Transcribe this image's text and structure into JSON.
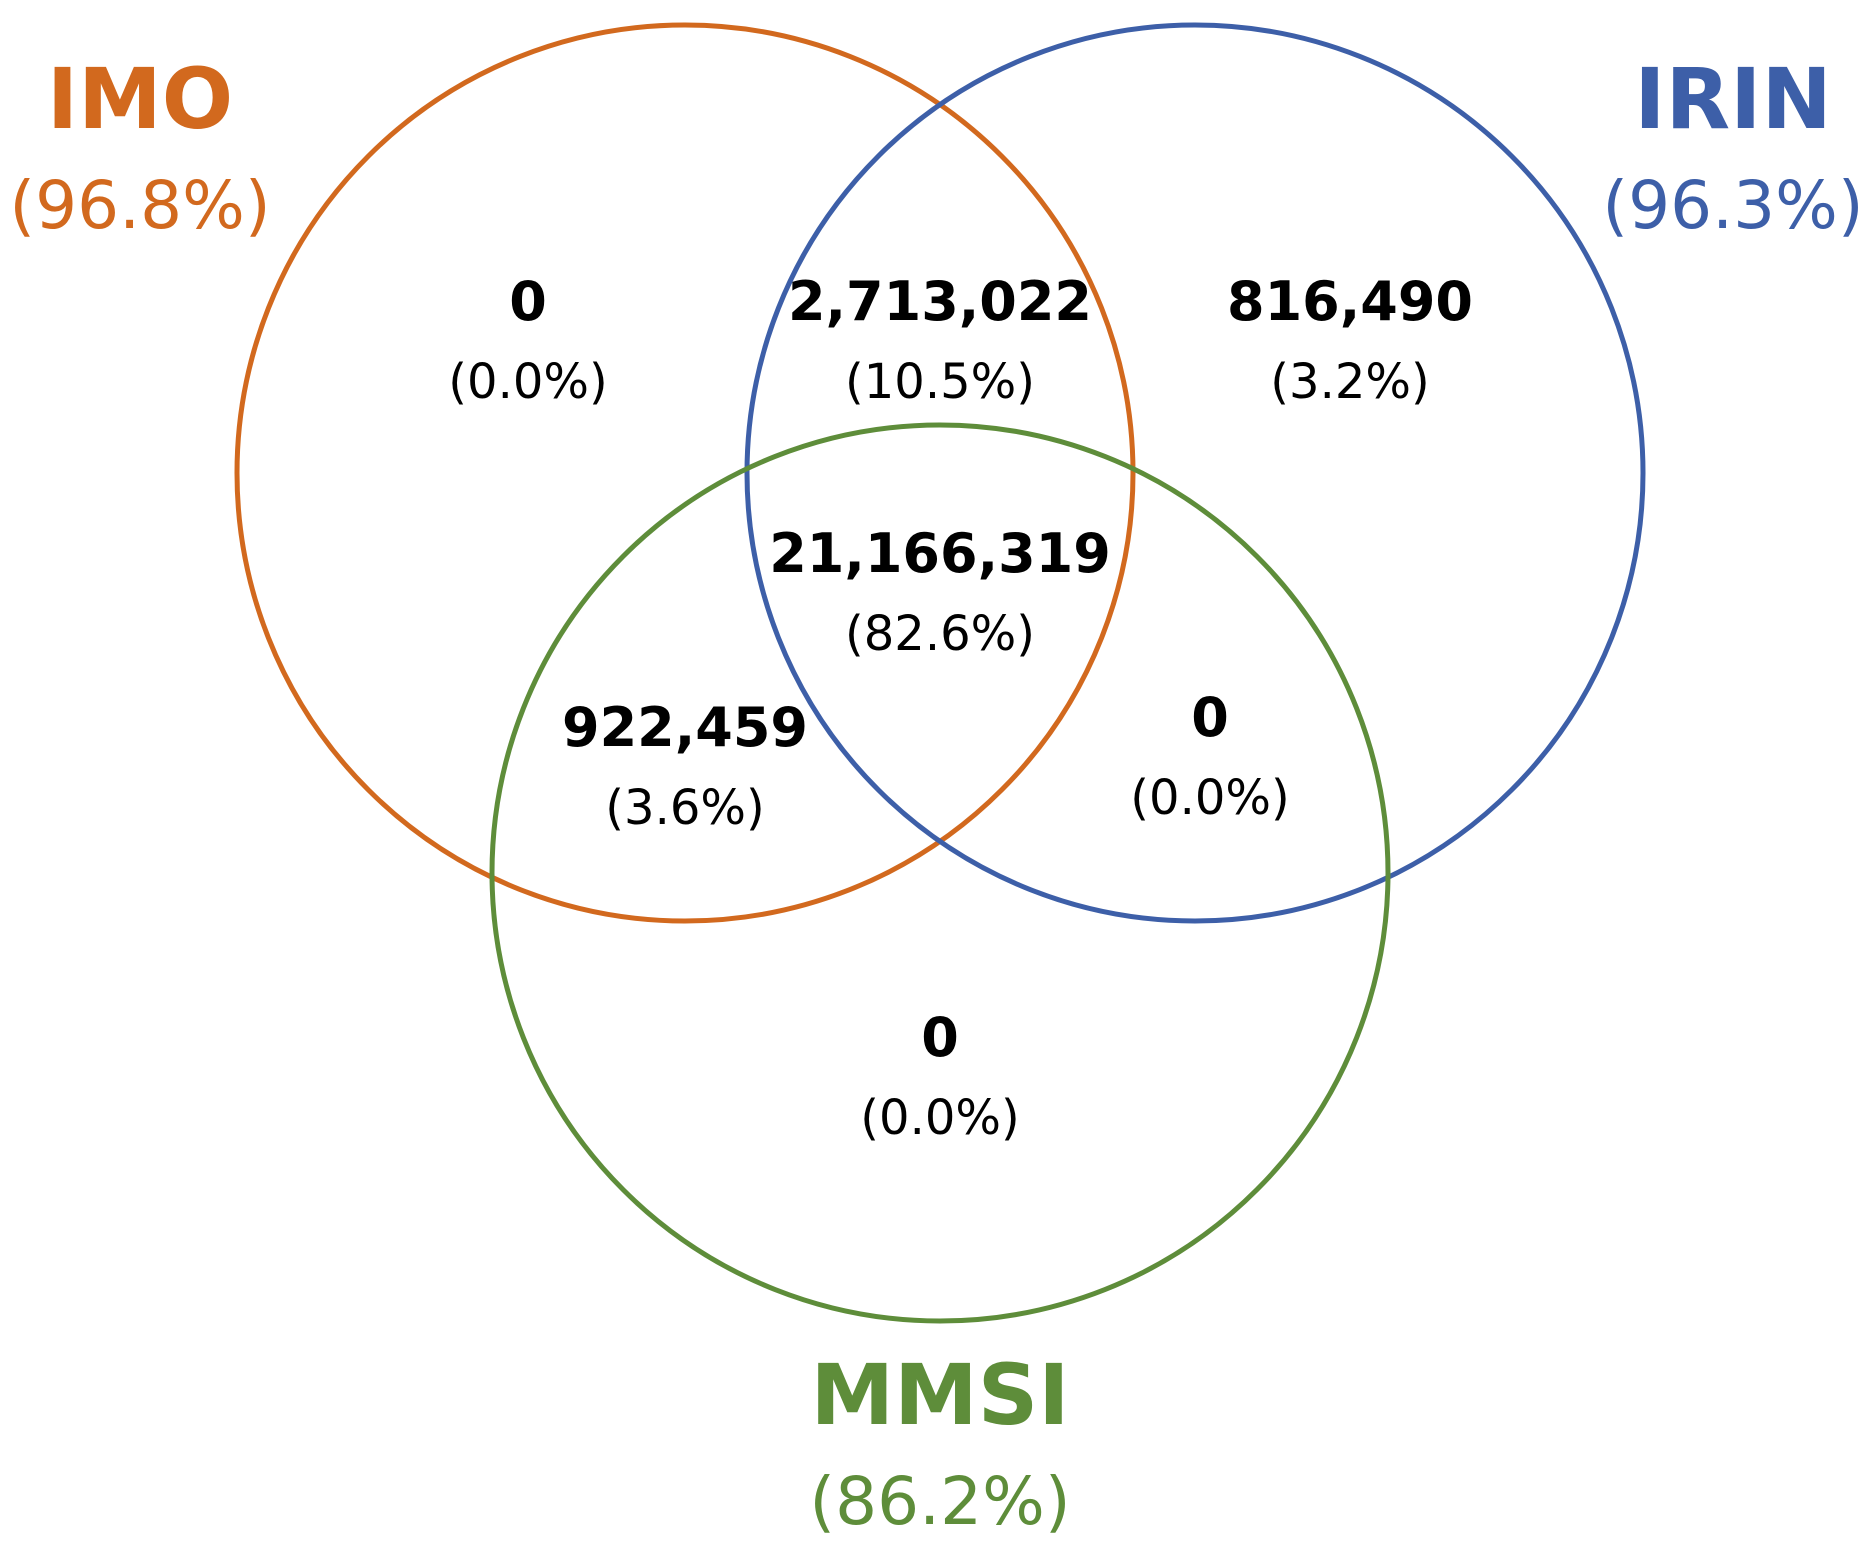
{
  "sets": {
    "imo": {
      "name": "IMO",
      "pct": "(96.8%)",
      "color": "#d2691e"
    },
    "irin": {
      "name": "IRIN",
      "pct": "(96.3%)",
      "color": "#3d5fa8"
    },
    "mmsi": {
      "name": "MMSI",
      "pct": "(86.2%)",
      "color": "#5e8d3a"
    }
  },
  "regions": {
    "imo_only": {
      "count": "0",
      "pct": "(0.0%)"
    },
    "imo_irin": {
      "count": "2,713,022",
      "pct": "(10.5%)"
    },
    "irin_only": {
      "count": "816,490",
      "pct": "(3.2%)"
    },
    "all_three": {
      "count": "21,166,319",
      "pct": "(82.6%)"
    },
    "imo_mmsi": {
      "count": "922,459",
      "pct": "(3.6%)"
    },
    "irin_mmsi": {
      "count": "0",
      "pct": "(0.0%)"
    },
    "mmsi_only": {
      "count": "0",
      "pct": "(0.0%)"
    }
  }
}
